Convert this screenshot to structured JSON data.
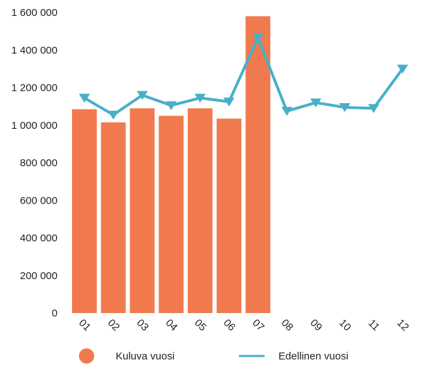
{
  "chart_data": {
    "type": "bar",
    "categories": [
      "01",
      "02",
      "03",
      "04",
      "05",
      "06",
      "07",
      "08",
      "09",
      "10",
      "11",
      "12"
    ],
    "series": [
      {
        "name": "Kuluva vuosi",
        "type": "bar",
        "color": "#f07a4e",
        "values": [
          1085000,
          1015000,
          1090000,
          1050000,
          1090000,
          1035000,
          1580000,
          null,
          null,
          null,
          null,
          null
        ]
      },
      {
        "name": "Edellinen vuosi",
        "type": "line",
        "color": "#47afc9",
        "marker": "triangle-down",
        "values": [
          1145000,
          1055000,
          1160000,
          1105000,
          1145000,
          1125000,
          1465000,
          1075000,
          1120000,
          1095000,
          1090000,
          1300000
        ]
      }
    ],
    "yticks": [
      "0",
      "200 000",
      "400 000",
      "600 000",
      "800 000",
      "1 000 000",
      "1 200 000",
      "1 400 000",
      "1 600 000"
    ],
    "ylim": [
      0,
      1600000
    ],
    "grid": false,
    "legend": "bottom",
    "title": "",
    "xlabel": "",
    "ylabel": ""
  }
}
